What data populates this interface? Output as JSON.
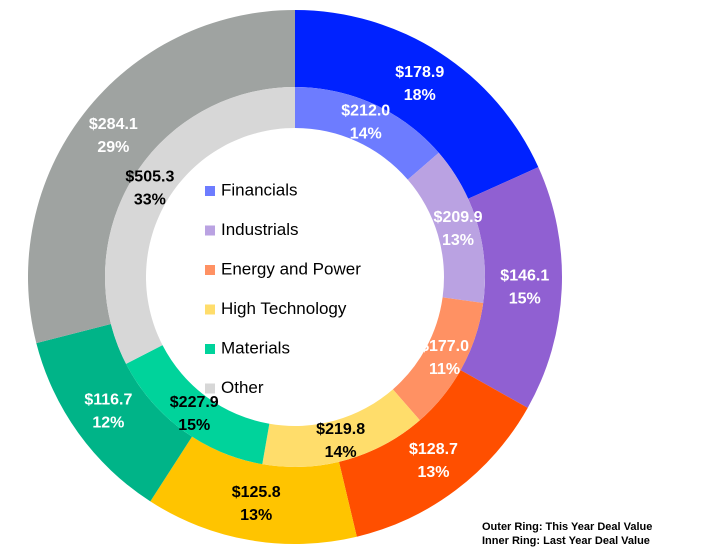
{
  "chart_data": {
    "type": "double-donut",
    "categories": [
      "Financials",
      "Industrials",
      "Energy and Power",
      "High Technology",
      "Materials",
      "Other"
    ],
    "series": [
      {
        "ring": "outer",
        "values": [
          178.9,
          146.1,
          128.7,
          125.8,
          116.7,
          284.1
        ],
        "value_labels": [
          "$178.9",
          "$146.1",
          "$128.7",
          "$125.8",
          "$116.7",
          "$284.1"
        ],
        "percent_labels": [
          "18%",
          "15%",
          "13%",
          "13%",
          "12%",
          "29%"
        ],
        "colors": [
          "#0022ff",
          "#9060d2",
          "#ff4f00",
          "#ffc400",
          "#00b488",
          "#9fa3a1"
        ],
        "label_colors": [
          "#ffffff",
          "#ffffff",
          "#ffffff",
          "#000000",
          "#ffffff",
          "#ffffff"
        ]
      },
      {
        "ring": "inner",
        "values": [
          212.0,
          209.9,
          177.0,
          219.8,
          227.9,
          505.3
        ],
        "value_labels": [
          "$212.0",
          "$209.9",
          "$177.0",
          "$219.8",
          "$227.9",
          "$505.3"
        ],
        "percent_labels": [
          "14%",
          "13%",
          "11%",
          "14%",
          "15%",
          "33%"
        ],
        "colors": [
          "#6d7cff",
          "#baa2e2",
          "#ff9163",
          "#ffdd6b",
          "#00d39b",
          "#d7d7d7"
        ],
        "label_colors": [
          "#ffffff",
          "#ffffff",
          "#ffffff",
          "#000000",
          "#000000",
          "#000000"
        ]
      }
    ],
    "notes": [
      "Outer Ring: This Year Deal Value",
      "Inner Ring: Last Year Deal Value"
    ]
  }
}
